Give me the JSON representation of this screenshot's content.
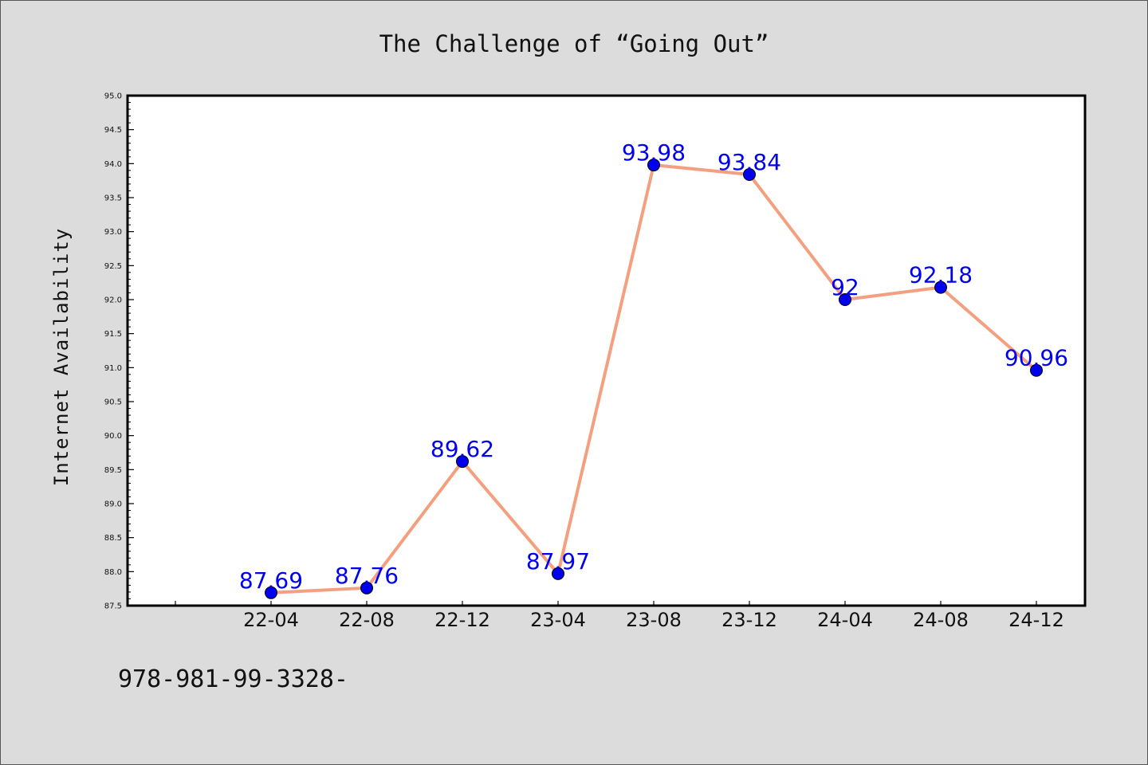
{
  "chart_data": {
    "type": "line",
    "title": "The Challenge of “Going Out”",
    "xlabel": "",
    "ylabel": "Internet Availability",
    "categories": [
      "22-04",
      "22-08",
      "22-12",
      "23-04",
      "23-08",
      "23-12",
      "24-04",
      "24-08",
      "24-12"
    ],
    "series": [
      {
        "values": [
          87.69,
          87.76,
          89.62,
          87.97,
          93.98,
          93.84,
          92,
          92.18,
          90.96
        ],
        "labels": [
          "87.69",
          "87.76",
          "89.62",
          "87.97",
          "93.98",
          "93.84",
          "92",
          "92.18",
          "90.96"
        ],
        "line_color": "#f4a080",
        "marker_color": "#0000ee",
        "label_color": "#0000ee"
      }
    ],
    "ylim": [
      87.5,
      95.0
    ],
    "yticks": [
      "87.5",
      "88.0",
      "88.5",
      "89.0",
      "89.5",
      "90.0",
      "90.5",
      "91.0",
      "91.5",
      "92.0",
      "92.5",
      "93.0",
      "93.5",
      "94.0",
      "94.5",
      "95.0"
    ],
    "grid": false,
    "legend": "none"
  },
  "footer_text": "978-981-99-3328-",
  "colors": {
    "background": "#dcdcdc",
    "plot_area": "#ffffff"
  }
}
